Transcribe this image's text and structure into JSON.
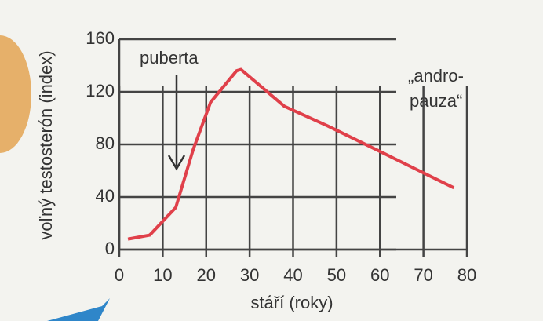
{
  "chart_data": {
    "type": "line",
    "x_label": "stáří (roky)",
    "y_label": "voľný testosterón (index)",
    "annotations": [
      "puberta",
      "„andro-",
      "pauza“"
    ],
    "x": [
      2,
      7,
      13,
      17,
      21,
      27,
      28,
      38,
      48,
      61,
      77
    ],
    "series": [
      {
        "name": "testosterón",
        "color": "#e0404a",
        "values": [
          8,
          11,
          32,
          76,
          112,
          136,
          137,
          109,
          94,
          73,
          47
        ]
      }
    ],
    "xlim": [
      0,
      80
    ],
    "xticks": [
      0,
      10,
      20,
      30,
      40,
      50,
      60,
      70,
      80
    ],
    "ylim": [
      0,
      160
    ],
    "yticks": [
      0,
      40,
      80,
      120,
      160
    ],
    "grid": true
  }
}
